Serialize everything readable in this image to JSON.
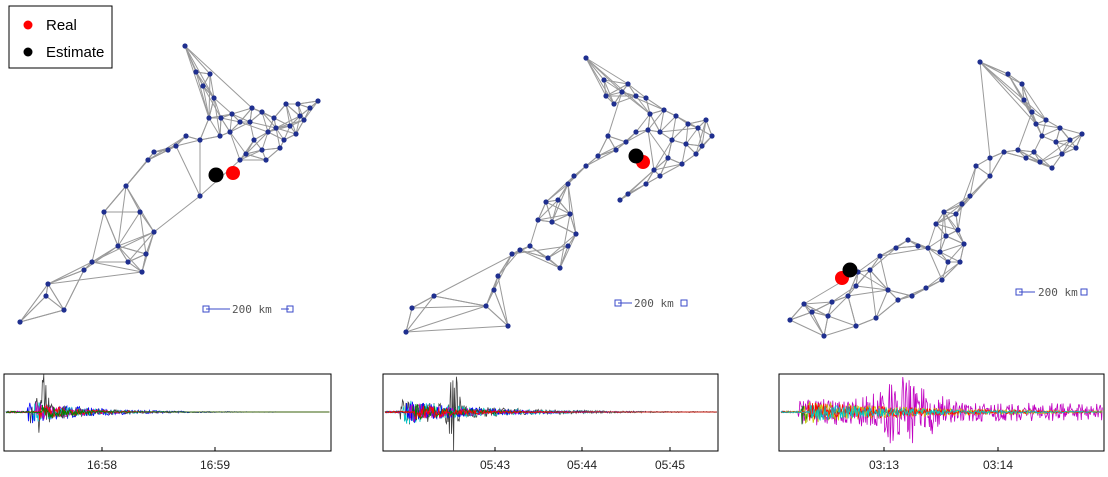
{
  "legend": {
    "items": [
      {
        "label": "Real",
        "color": "#ff0000"
      },
      {
        "label": "Estimate",
        "color": "#000000"
      }
    ]
  },
  "colors": {
    "node": "#1f2f8f",
    "edge": "#9a9a9a",
    "real": "#ff0000",
    "estimate": "#000000",
    "scale_bar": "#3a49c8"
  },
  "panels": [
    {
      "id": "panel-1",
      "scale_label": "200  km",
      "time_ticks": [
        "16:58",
        "16:59"
      ],
      "trace_colors": [
        "#0000ff",
        "#404040",
        "#00c8c8",
        "#c000c0",
        "#ff0000",
        "#008000"
      ]
    },
    {
      "id": "panel-2",
      "scale_label": "200  km",
      "time_ticks": [
        "05:43",
        "05:44",
        "05:45"
      ],
      "trace_colors": [
        "#404040",
        "#00c8c8",
        "#0000ff",
        "#c000c0",
        "#008000",
        "#ff0000"
      ]
    },
    {
      "id": "panel-3",
      "scale_label": "200  km",
      "time_ticks": [
        "03:13",
        "03:14"
      ],
      "trace_colors": [
        "#c000c0",
        "#008000",
        "#c8c800",
        "#ff0000",
        "#00c8c8"
      ]
    }
  ]
}
